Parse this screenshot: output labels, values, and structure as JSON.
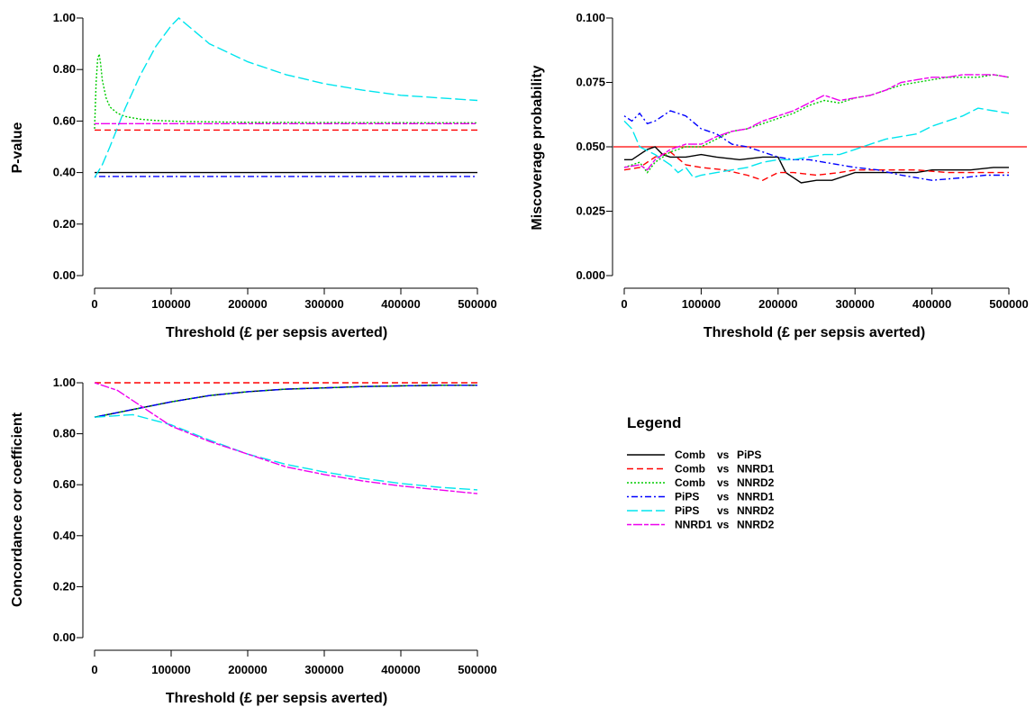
{
  "chart_data": [
    {
      "type": "line",
      "xlabel": "Threshold (£ per sepsis averted)",
      "ylabel": "P-value",
      "xlim": [
        0,
        500000
      ],
      "ylim": [
        0,
        1
      ],
      "xticks": [
        0,
        100000,
        200000,
        300000,
        400000,
        500000
      ],
      "xtick_labels": [
        "0",
        "100000",
        "200000",
        "300000",
        "400000",
        "500000"
      ],
      "yticks": [
        0,
        0.2,
        0.4,
        0.6,
        0.8,
        1.0
      ],
      "ytick_labels": [
        "0.00",
        "0.20",
        "0.40",
        "0.60",
        "0.80",
        "1.00"
      ],
      "grid": false,
      "series": [
        {
          "key": "comb_pips",
          "x": [
            0,
            500000
          ],
          "y": [
            0.4,
            0.4
          ]
        },
        {
          "key": "comb_nnrd1",
          "x": [
            0,
            500000
          ],
          "y": [
            0.565,
            0.565
          ]
        },
        {
          "key": "comb_nnrd2",
          "x": [
            0,
            2000,
            4000,
            6000,
            8000,
            10000,
            15000,
            20000,
            30000,
            40000,
            60000,
            80000,
            120000,
            200000,
            300000,
            500000
          ],
          "y": [
            0.57,
            0.75,
            0.84,
            0.86,
            0.82,
            0.76,
            0.69,
            0.655,
            0.63,
            0.618,
            0.607,
            0.602,
            0.598,
            0.595,
            0.594,
            0.593
          ]
        },
        {
          "key": "pips_nnrd1",
          "x": [
            0,
            500000
          ],
          "y": [
            0.385,
            0.385
          ]
        },
        {
          "key": "pips_nnrd2",
          "x": [
            0,
            10000,
            20000,
            40000,
            60000,
            80000,
            100000,
            110000,
            130000,
            150000,
            200000,
            250000,
            300000,
            350000,
            400000,
            450000,
            500000
          ],
          "y": [
            0.38,
            0.43,
            0.5,
            0.65,
            0.78,
            0.89,
            0.97,
            1.0,
            0.95,
            0.9,
            0.83,
            0.78,
            0.745,
            0.72,
            0.7,
            0.69,
            0.68
          ]
        },
        {
          "key": "nnrd1_nnrd2",
          "x": [
            0,
            500000
          ],
          "y": [
            0.59,
            0.59
          ]
        }
      ]
    },
    {
      "type": "line",
      "xlabel": "Threshold (£ per sepsis averted)",
      "ylabel": "Miscoverage probability",
      "xlim": [
        0,
        500000
      ],
      "ylim": [
        0,
        0.1
      ],
      "xticks": [
        0,
        100000,
        200000,
        300000,
        400000,
        500000
      ],
      "xtick_labels": [
        "0",
        "100000",
        "200000",
        "300000",
        "400000",
        "500000"
      ],
      "yticks": [
        0,
        0.025,
        0.05,
        0.075,
        0.1
      ],
      "ytick_labels": [
        "0.000",
        "0.025",
        "0.050",
        "0.075",
        "0.100"
      ],
      "grid": false,
      "reference_line": {
        "y": 0.05,
        "color": "#ff0000"
      },
      "series": [
        {
          "key": "comb_pips",
          "x": [
            0,
            10000,
            20000,
            30000,
            40000,
            50000,
            60000,
            80000,
            100000,
            120000,
            150000,
            180000,
            200000,
            210000,
            220000,
            230000,
            250000,
            270000,
            290000,
            300000,
            320000,
            350000,
            380000,
            400000,
            420000,
            450000,
            480000,
            500000
          ],
          "y": [
            0.045,
            0.045,
            0.047,
            0.049,
            0.05,
            0.047,
            0.046,
            0.046,
            0.047,
            0.046,
            0.045,
            0.046,
            0.046,
            0.04,
            0.038,
            0.036,
            0.037,
            0.037,
            0.039,
            0.04,
            0.04,
            0.04,
            0.04,
            0.041,
            0.041,
            0.041,
            0.042,
            0.042
          ]
        },
        {
          "key": "comb_nnrd1",
          "x": [
            0,
            20000,
            40000,
            60000,
            80000,
            100000,
            130000,
            160000,
            180000,
            200000,
            220000,
            250000,
            280000,
            300000,
            340000,
            380000,
            420000,
            460000,
            500000
          ],
          "y": [
            0.041,
            0.042,
            0.046,
            0.048,
            0.043,
            0.042,
            0.041,
            0.039,
            0.037,
            0.04,
            0.04,
            0.039,
            0.04,
            0.041,
            0.041,
            0.041,
            0.04,
            0.04,
            0.04
          ]
        },
        {
          "key": "comb_nnrd2",
          "x": [
            0,
            20000,
            30000,
            40000,
            60000,
            80000,
            100000,
            120000,
            140000,
            160000,
            180000,
            200000,
            220000,
            240000,
            260000,
            280000,
            300000,
            320000,
            340000,
            360000,
            380000,
            400000,
            420000,
            440000,
            460000,
            480000,
            500000
          ],
          "y": [
            0.042,
            0.044,
            0.04,
            0.044,
            0.048,
            0.05,
            0.05,
            0.053,
            0.056,
            0.057,
            0.059,
            0.061,
            0.063,
            0.066,
            0.068,
            0.067,
            0.069,
            0.07,
            0.072,
            0.074,
            0.075,
            0.076,
            0.077,
            0.077,
            0.077,
            0.078,
            0.077
          ]
        },
        {
          "key": "pips_nnrd1",
          "x": [
            0,
            10000,
            20000,
            30000,
            40000,
            60000,
            80000,
            100000,
            120000,
            140000,
            160000,
            180000,
            200000,
            220000,
            240000,
            260000,
            280000,
            300000,
            330000,
            360000,
            400000,
            440000,
            470000,
            500000
          ],
          "y": [
            0.062,
            0.06,
            0.063,
            0.059,
            0.06,
            0.064,
            0.062,
            0.057,
            0.055,
            0.051,
            0.05,
            0.048,
            0.046,
            0.045,
            0.045,
            0.044,
            0.043,
            0.042,
            0.041,
            0.039,
            0.037,
            0.038,
            0.039,
            0.039
          ]
        },
        {
          "key": "pips_nnrd2",
          "x": [
            0,
            10000,
            20000,
            40000,
            60000,
            70000,
            80000,
            90000,
            100000,
            120000,
            140000,
            160000,
            180000,
            200000,
            220000,
            240000,
            260000,
            280000,
            300000,
            320000,
            340000,
            360000,
            380000,
            400000,
            420000,
            440000,
            460000,
            480000,
            500000
          ],
          "y": [
            0.06,
            0.057,
            0.05,
            0.047,
            0.043,
            0.04,
            0.042,
            0.038,
            0.039,
            0.04,
            0.041,
            0.042,
            0.044,
            0.045,
            0.045,
            0.046,
            0.047,
            0.047,
            0.049,
            0.051,
            0.053,
            0.054,
            0.055,
            0.058,
            0.06,
            0.062,
            0.065,
            0.064,
            0.063
          ]
        },
        {
          "key": "nnrd1_nnrd2",
          "x": [
            0,
            20000,
            30000,
            40000,
            60000,
            80000,
            100000,
            120000,
            140000,
            160000,
            180000,
            200000,
            220000,
            240000,
            260000,
            280000,
            300000,
            320000,
            340000,
            360000,
            380000,
            400000,
            420000,
            440000,
            460000,
            480000,
            500000
          ],
          "y": [
            0.042,
            0.043,
            0.041,
            0.045,
            0.049,
            0.051,
            0.051,
            0.054,
            0.056,
            0.057,
            0.06,
            0.062,
            0.064,
            0.067,
            0.07,
            0.068,
            0.069,
            0.07,
            0.072,
            0.075,
            0.076,
            0.077,
            0.077,
            0.078,
            0.078,
            0.078,
            0.077
          ]
        }
      ]
    },
    {
      "type": "line",
      "xlabel": "Threshold (£ per sepsis averted)",
      "ylabel": "Concordance cor coefficient",
      "xlim": [
        0,
        500000
      ],
      "ylim": [
        0,
        1
      ],
      "xticks": [
        0,
        100000,
        200000,
        300000,
        400000,
        500000
      ],
      "xtick_labels": [
        "0",
        "100000",
        "200000",
        "300000",
        "400000",
        "500000"
      ],
      "yticks": [
        0,
        0.2,
        0.4,
        0.6,
        0.8,
        1.0
      ],
      "ytick_labels": [
        "0.00",
        "0.20",
        "0.40",
        "0.60",
        "0.80",
        "1.00"
      ],
      "grid": false,
      "series": [
        {
          "key": "comb_pips",
          "x": [
            0,
            50000,
            100000,
            150000,
            200000,
            250000,
            300000,
            350000,
            400000,
            450000,
            500000
          ],
          "y": [
            0.865,
            0.895,
            0.925,
            0.95,
            0.965,
            0.975,
            0.98,
            0.985,
            0.988,
            0.99,
            0.99
          ]
        },
        {
          "key": "comb_nnrd1",
          "x": [
            0,
            500000
          ],
          "y": [
            1.0,
            1.0
          ]
        },
        {
          "key": "comb_nnrd2",
          "x": [
            0,
            50000,
            100000,
            150000,
            200000,
            250000,
            300000,
            350000,
            400000,
            450000,
            500000
          ],
          "y": [
            0.865,
            0.895,
            0.925,
            0.95,
            0.965,
            0.975,
            0.98,
            0.985,
            0.988,
            0.99,
            0.99
          ]
        },
        {
          "key": "pips_nnrd1",
          "x": [
            0,
            50000,
            100000,
            150000,
            200000,
            250000,
            300000,
            350000,
            400000,
            450000,
            500000
          ],
          "y": [
            0.865,
            0.895,
            0.925,
            0.95,
            0.965,
            0.975,
            0.98,
            0.985,
            0.988,
            0.99,
            0.99
          ]
        },
        {
          "key": "pips_nnrd2",
          "x": [
            0,
            50000,
            100000,
            150000,
            200000,
            250000,
            300000,
            350000,
            400000,
            450000,
            500000
          ],
          "y": [
            0.865,
            0.875,
            0.835,
            0.775,
            0.72,
            0.68,
            0.65,
            0.625,
            0.605,
            0.59,
            0.58
          ]
        },
        {
          "key": "nnrd1_nnrd2",
          "x": [
            0,
            30000,
            60000,
            100000,
            150000,
            200000,
            250000,
            300000,
            350000,
            400000,
            450000,
            500000
          ],
          "y": [
            1.0,
            0.97,
            0.91,
            0.83,
            0.77,
            0.72,
            0.67,
            0.64,
            0.615,
            0.595,
            0.58,
            0.565
          ]
        }
      ]
    }
  ],
  "legend": {
    "title": "Legend",
    "placement": "right of bottom-left panel",
    "entries": [
      {
        "key": "comb_pips",
        "a": "Comb",
        "vs": "vs",
        "b": "PiPS",
        "color": "#000000",
        "dash": "solid"
      },
      {
        "key": "comb_nnrd1",
        "a": "Comb",
        "vs": "vs",
        "b": "NNRD1",
        "color": "#ff0000",
        "dash": "dashed"
      },
      {
        "key": "comb_nnrd2",
        "a": "Comb",
        "vs": "vs",
        "b": "NNRD2",
        "color": "#00cc00",
        "dash": "dotted"
      },
      {
        "key": "pips_nnrd1",
        "a": "PiPS",
        "vs": "vs",
        "b": "NNRD1",
        "color": "#0000ff",
        "dash": "dotdash"
      },
      {
        "key": "pips_nnrd2",
        "a": "PiPS",
        "vs": "vs",
        "b": "NNRD2",
        "color": "#00e5ee",
        "dash": "longdash"
      },
      {
        "key": "nnrd1_nnrd2",
        "a": "NNRD1",
        "vs": "vs",
        "b": "NNRD2",
        "color": "#ee00ee",
        "dash": "twodash"
      }
    ]
  }
}
